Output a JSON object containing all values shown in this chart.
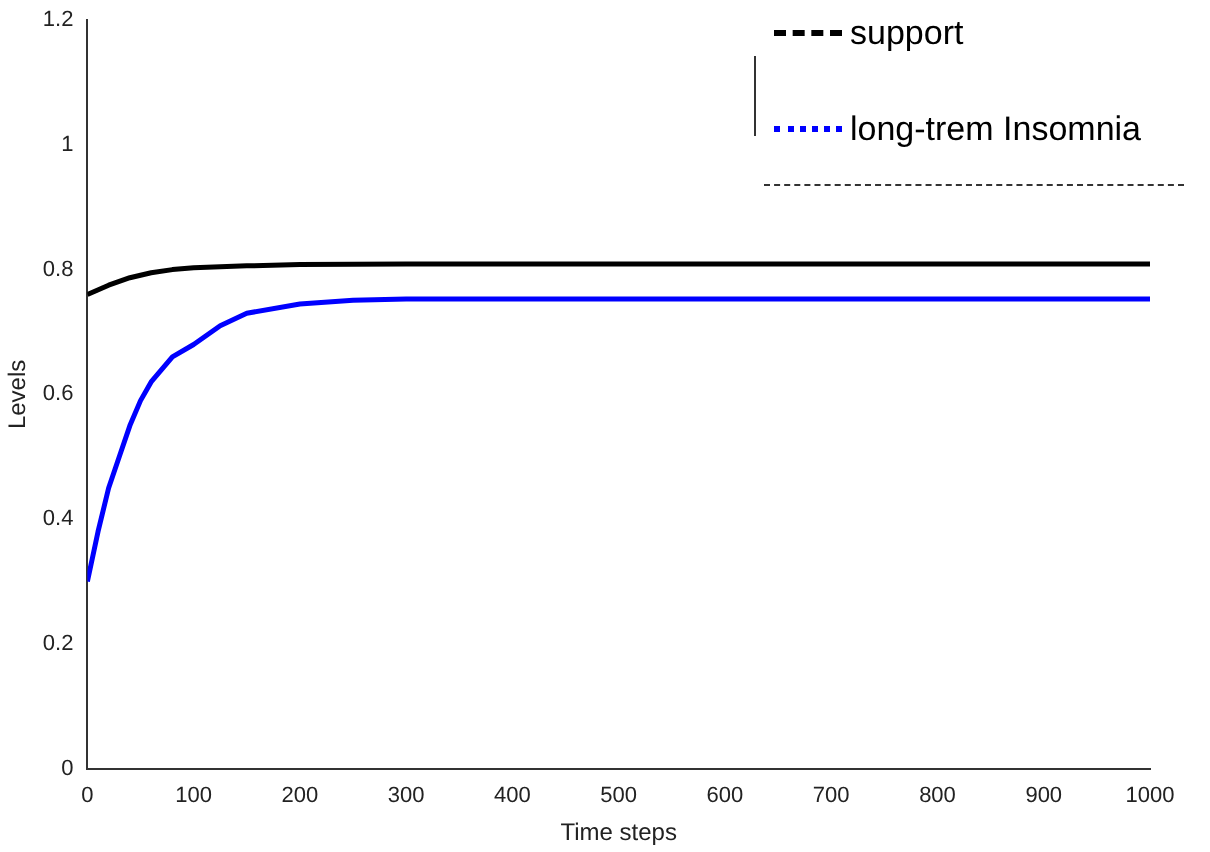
{
  "chart_data": {
    "type": "line",
    "xlabel": "Time steps",
    "ylabel": "Levels",
    "xlim": [
      0,
      1000
    ],
    "ylim": [
      0,
      1.2
    ],
    "xticks": [
      0,
      100,
      200,
      300,
      400,
      500,
      600,
      700,
      800,
      900,
      1000
    ],
    "yticks": [
      0,
      0.2,
      0.4,
      0.6,
      0.8,
      1,
      1.2
    ],
    "grid": false,
    "legend": "top right",
    "marker": "none",
    "series": [
      {
        "name": "support",
        "color": "#000000",
        "x": [
          0,
          20,
          40,
          60,
          80,
          100,
          150,
          200,
          300,
          1000
        ],
        "values": [
          0.76,
          0.775,
          0.787,
          0.795,
          0.8,
          0.803,
          0.806,
          0.808,
          0.809,
          0.809
        ]
      },
      {
        "name": "long-trem Insomnia",
        "color": "#0000ff",
        "x": [
          0,
          10,
          20,
          30,
          40,
          50,
          60,
          80,
          100,
          125,
          150,
          200,
          250,
          300,
          1000
        ],
        "values": [
          0.3,
          0.38,
          0.45,
          0.5,
          0.55,
          0.59,
          0.62,
          0.66,
          0.68,
          0.71,
          0.73,
          0.745,
          0.751,
          0.753,
          0.753
        ]
      }
    ]
  }
}
